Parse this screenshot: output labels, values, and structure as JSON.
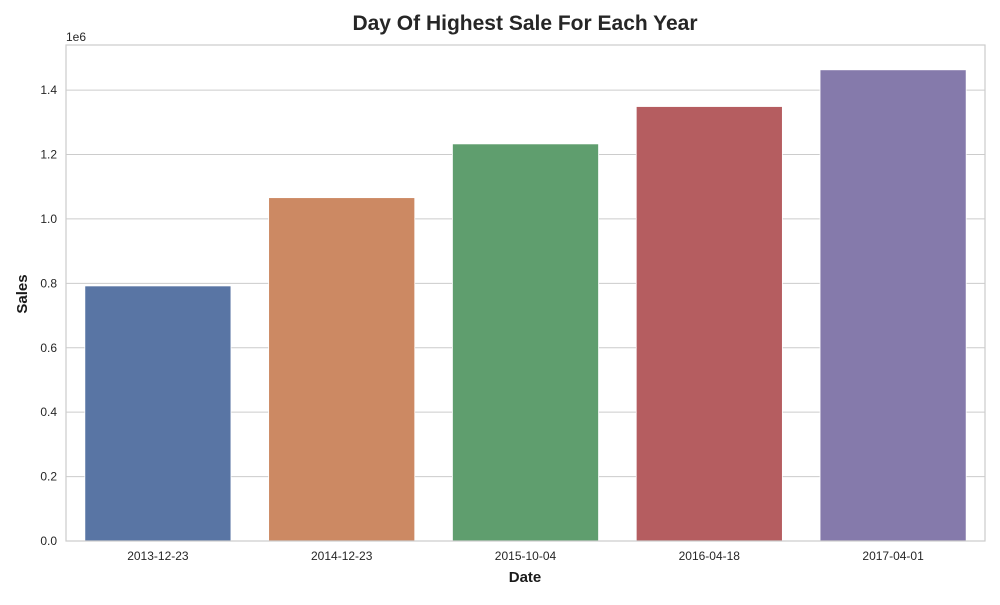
{
  "chart_data": {
    "type": "bar",
    "title": "Day Of Highest Sale For Each Year",
    "xlabel": "Date",
    "ylabel": "Sales",
    "y_scale_label": "1e6",
    "categories": [
      "2013-12-23",
      "2014-12-23",
      "2015-10-04",
      "2016-04-18",
      "2017-04-01"
    ],
    "values": [
      792000,
      1066000,
      1233000,
      1349000,
      1463000
    ],
    "ylim": [
      0,
      1540000
    ],
    "yticks": [
      0,
      200000,
      400000,
      600000,
      800000,
      1000000,
      1200000,
      1400000
    ],
    "ytick_labels": [
      "0.0",
      "0.2",
      "0.4",
      "0.6",
      "0.8",
      "1.0",
      "1.2",
      "1.4"
    ],
    "colors": [
      "#5975a4",
      "#cc8963",
      "#5f9e6e",
      "#b55d60",
      "#857aab"
    ],
    "grid": true,
    "legend": "none"
  }
}
